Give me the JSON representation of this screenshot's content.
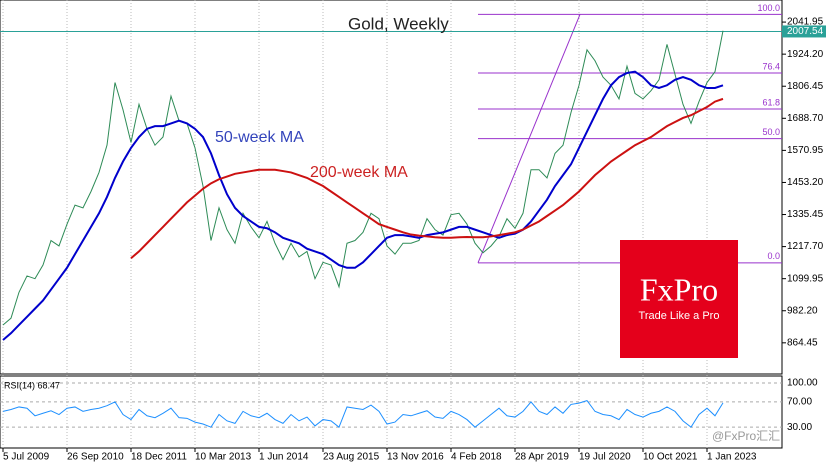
{
  "chart_data": {
    "type": "line",
    "title": "Gold, Weekly",
    "categories": [
      "5 Jul 2009",
      null,
      null,
      null,
      null,
      null,
      null,
      null,
      "26 Sep 2010",
      null,
      null,
      null,
      null,
      null,
      null,
      null,
      "18 Dec 2011",
      null,
      null,
      null,
      null,
      null,
      null,
      null,
      "10 Mar 2013",
      null,
      null,
      null,
      null,
      null,
      null,
      null,
      "1 Jun 2014",
      null,
      null,
      null,
      null,
      null,
      null,
      null,
      "23 Aug 2015",
      null,
      null,
      null,
      null,
      null,
      null,
      null,
      "13 Nov 2016",
      null,
      null,
      null,
      null,
      null,
      null,
      null,
      "4 Feb 2018",
      null,
      null,
      null,
      null,
      null,
      null,
      null,
      "28 Apr 2019",
      null,
      null,
      null,
      null,
      null,
      null,
      null,
      "19 Jul 2020",
      null,
      null,
      null,
      null,
      null,
      null,
      null,
      "10 Oct 2021",
      null,
      null,
      null,
      null,
      null,
      null,
      null,
      "1 Jan 2023",
      null,
      null
    ],
    "series": [
      {
        "color": "#2e8b57",
        "values": [
          930,
          955,
          1050,
          1110,
          1100,
          1150,
          1240,
          1220,
          1300,
          1370,
          1360,
          1420,
          1490,
          1590,
          1820,
          1720,
          1600,
          1740,
          1650,
          1590,
          1620,
          1770,
          1680,
          1670,
          1580,
          1440,
          1240,
          1360,
          1280,
          1230,
          1340,
          1290,
          1250,
          1310,
          1230,
          1170,
          1230,
          1180,
          1200,
          1100,
          1160,
          1150,
          1070,
          1230,
          1240,
          1270,
          1340,
          1320,
          1220,
          1190,
          1230,
          1230,
          1240,
          1320,
          1280,
          1260,
          1335,
          1340,
          1300,
          1230,
          1195,
          1220,
          1255,
          1320,
          1285,
          1340,
          1500,
          1500,
          1470,
          1560,
          1590,
          1710,
          1810,
          1940,
          1900,
          1840,
          1810,
          1760,
          1880,
          1780,
          1760,
          1790,
          1830,
          1960,
          1850,
          1740,
          1670,
          1750,
          1820,
          1860,
          2010
        ]
      },
      {
        "name": "50-week MA",
        "color": "#0000cc",
        "values": [
          875,
          900,
          930,
          960,
          990,
          1020,
          1060,
          1100,
          1140,
          1190,
          1240,
          1290,
          1340,
          1400,
          1470,
          1530,
          1580,
          1620,
          1650,
          1660,
          1660,
          1670,
          1680,
          1670,
          1650,
          1620,
          1560,
          1480,
          1410,
          1360,
          1330,
          1310,
          1290,
          1285,
          1270,
          1250,
          1240,
          1230,
          1210,
          1200,
          1190,
          1170,
          1150,
          1140,
          1140,
          1160,
          1190,
          1220,
          1250,
          1260,
          1260,
          1255,
          1250,
          1260,
          1265,
          1270,
          1280,
          1290,
          1290,
          1280,
          1270,
          1260,
          1250,
          1260,
          1265,
          1280,
          1310,
          1350,
          1390,
          1440,
          1480,
          1520,
          1580,
          1640,
          1700,
          1760,
          1810,
          1840,
          1855,
          1860,
          1840,
          1810,
          1800,
          1810,
          1830,
          1840,
          1830,
          1810,
          1800,
          1800,
          1810
        ]
      },
      {
        "name": "200-week MA",
        "color": "#cc1111",
        "values": [
          null,
          null,
          null,
          null,
          null,
          null,
          null,
          null,
          null,
          null,
          null,
          null,
          null,
          null,
          null,
          null,
          1175,
          1200,
          1230,
          1260,
          1290,
          1320,
          1350,
          1380,
          1405,
          1430,
          1450,
          1465,
          1475,
          1485,
          1490,
          1495,
          1500,
          1500,
          1500,
          1495,
          1490,
          1480,
          1470,
          1455,
          1440,
          1420,
          1400,
          1380,
          1360,
          1340,
          1320,
          1300,
          1290,
          1280,
          1270,
          1262,
          1258,
          1255,
          1252,
          1250,
          1250,
          1252,
          1253,
          1252,
          1252,
          1255,
          1260,
          1265,
          1270,
          1280,
          1295,
          1310,
          1330,
          1350,
          1370,
          1395,
          1420,
          1450,
          1480,
          1505,
          1530,
          1550,
          1570,
          1590,
          1605,
          1620,
          1640,
          1660,
          1675,
          1690,
          1700,
          1715,
          1730,
          1750,
          1760
        ]
      }
    ],
    "ylim": [
      750,
      2123
    ],
    "yticks": [
      2041.95,
      {
        "value": 1924.2,
        "label": "1924.20"
      },
      1806.45,
      {
        "value": 1688.7,
        "label": "1688.70"
      },
      1570.95,
      {
        "value": 1453.2,
        "label": "1453.20"
      },
      1335.45,
      {
        "value": 1217.7,
        "label": "1217.70"
      },
      1099.95,
      {
        "value": 982.2,
        "label": "982.20"
      },
      864.45
    ],
    "last_price": 2007.54,
    "fibonacci": [
      {
        "label": "100.0",
        "price": 2070
      },
      {
        "label": "76.4",
        "price": 1855
      },
      {
        "label": "61.8",
        "price": 1723
      },
      {
        "label": "50.0",
        "price": 1614
      },
      {
        "label": "0.0",
        "price": 1158
      }
    ],
    "rsi": {
      "title": "RSI(14) 68.47",
      "color": "#1e90ff",
      "ylim": [
        -3,
        111
      ],
      "yticks": [
        {
          "value": 100,
          "label": "100.00"
        },
        {
          "value": 70,
          "label": "70.00"
        },
        {
          "value": 30,
          "label": "30.00"
        }
      ],
      "values": [
        55,
        58,
        62,
        60,
        48,
        52,
        56,
        50,
        60,
        62,
        55,
        58,
        60,
        64,
        70,
        50,
        42,
        58,
        48,
        45,
        52,
        60,
        45,
        44,
        38,
        35,
        30,
        50,
        40,
        36,
        55,
        48,
        45,
        52,
        42,
        36,
        50,
        40,
        46,
        32,
        42,
        40,
        30,
        62,
        60,
        58,
        65,
        55,
        35,
        38,
        50,
        48,
        52,
        56,
        46,
        44,
        55,
        50,
        42,
        30,
        40,
        50,
        60,
        48,
        46,
        55,
        70,
        55,
        50,
        62,
        52,
        66,
        68,
        72,
        55,
        50,
        48,
        42,
        58,
        50,
        46,
        52,
        55,
        62,
        55,
        40,
        30,
        50,
        60,
        48,
        68.47
      ]
    },
    "logo": {
      "brand": "FxPro",
      "tagline": "Trade Like a Pro"
    },
    "watermark": "@FxPro汇汇"
  }
}
